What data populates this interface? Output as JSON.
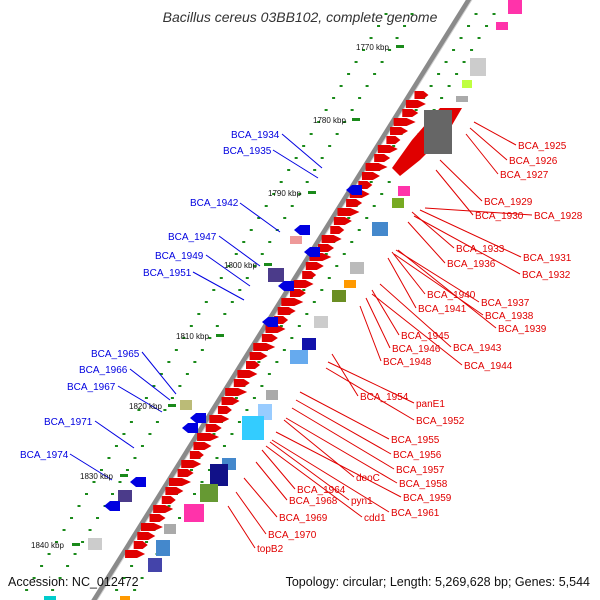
{
  "title": "Bacillus cereus 03BB102, complete genome",
  "footer": {
    "accession": "Accession: NC_012472",
    "summary": "Topology: circular; Length: 5,269,628 bp; Genes: 5,544"
  },
  "colors": {
    "forward_label": "#e00000",
    "reverse_label": "#0000e0",
    "backbone": "#808080",
    "tick": "#1a8a1a"
  },
  "scale_ticks": [
    "1770 kbp",
    "1780 kbp",
    "1790 kbp",
    "1800 kbp",
    "1810 kbp",
    "1820 kbp",
    "1830 kbp",
    "1840 kbp"
  ],
  "reverse_genes": [
    "BCA_1934",
    "BCA_1935",
    "BCA_1942",
    "BCA_1947",
    "BCA_1949",
    "BCA_1951",
    "BCA_1965",
    "BCA_1966",
    "BCA_1967",
    "BCA_1971",
    "BCA_1974"
  ],
  "forward_genes": [
    "BCA_1925",
    "BCA_1926",
    "BCA_1927",
    "BCA_1929",
    "BCA_1930",
    "BCA_1928",
    "BCA_1933",
    "BCA_1931",
    "BCA_1936",
    "BCA_1932",
    "BCA_1940",
    "BCA_1937",
    "BCA_1941",
    "BCA_1938",
    "BCA_1939",
    "BCA_1945",
    "BCA_1943",
    "BCA_1946",
    "BCA_1948",
    "BCA_1944",
    "BCA_1954",
    "panE1",
    "BCA_1952",
    "BCA_1955",
    "BCA_1956",
    "BCA_1957",
    "deoC",
    "BCA_1958",
    "BCA_1964",
    "BCA_1959",
    "BCA_1968",
    "pyn1",
    "cdd1",
    "BCA_1961",
    "BCA_1969",
    "BCA_1970",
    "topB2"
  ]
}
